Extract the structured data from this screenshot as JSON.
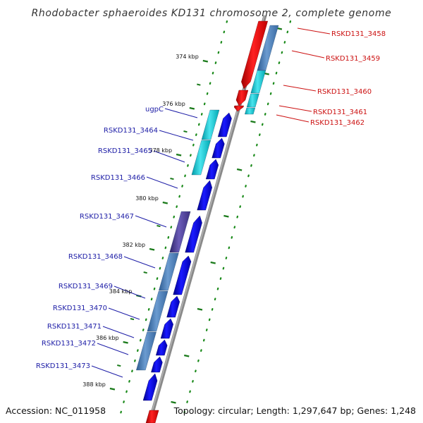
{
  "title": "Rhodobacter sphaeroides KD131 chromosome 2, complete genome",
  "accession": "Accession: NC_011958",
  "topology": "Topology: circular; Length: 1,297,647 bp; Genes: 1,248",
  "kbp_labels": [
    "374 kbp",
    "376 kbp",
    "378 kbp",
    "380 kbp",
    "382 kbp",
    "384 kbp",
    "386 kbp",
    "388 kbp"
  ],
  "forward_genes": [
    "RSKD131_3458",
    "RSKD131_3459",
    "RSKD131_3460",
    "RSKD131_3461",
    "RSKD131_3462"
  ],
  "reverse_genes": [
    "ugpC",
    "RSKD131_3464",
    "RSKD131_3465",
    "RSKD131_3466",
    "RSKD131_3467",
    "RSKD131_3468",
    "RSKD131_3469",
    "RSKD131_3470",
    "RSKD131_3471",
    "RSKD131_3472",
    "RSKD131_3473"
  ],
  "colors": {
    "backbone": "#888888",
    "forward_cds": "#ee1111",
    "reverse_cds": "#0a0aee",
    "gene_label_forward": "#cc1111",
    "gene_label_reverse": "#1c1ca6",
    "tick": "#1a7a1a",
    "cog_cyan": "#20c8d0",
    "cog_steel": "#4a7fb8",
    "cog_purple": "#4a3c90"
  }
}
